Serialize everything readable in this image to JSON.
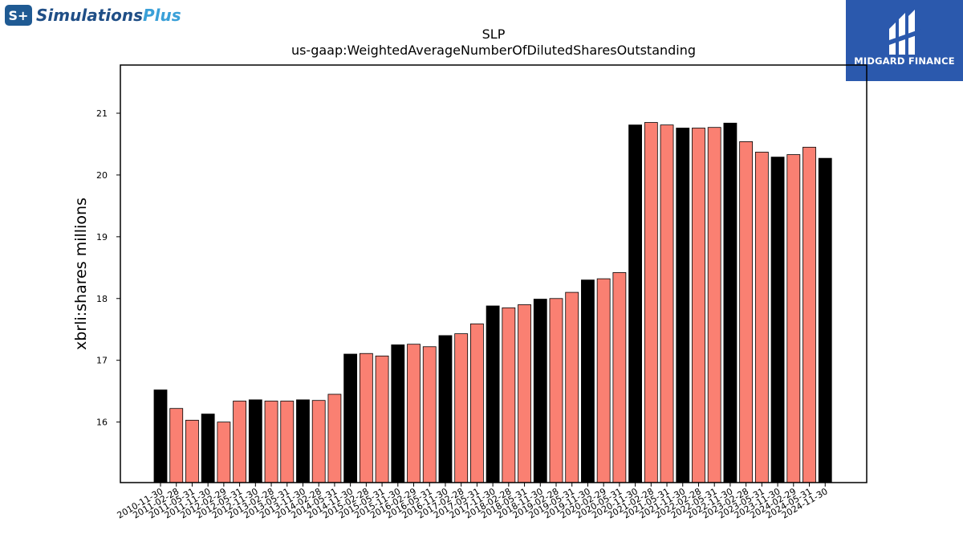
{
  "branding": {
    "left_logo_badge": "S+",
    "left_logo_text_a": "Simulations",
    "left_logo_text_b": "Plus",
    "right_logo_text": "MIDGARD FINANCE"
  },
  "chart_data": {
    "type": "bar",
    "title": "SLP",
    "subtitle": "us-gaap:WeightedAverageNumberOfDilutedSharesOutstanding",
    "ylabel": "xbrli:shares millions",
    "xlabel": "",
    "ylim": [
      15.02,
      21.78
    ],
    "yticks": [
      16,
      17,
      18,
      19,
      20,
      21
    ],
    "grid": false,
    "categories": [
      "2010-11-30",
      "2011-02-28",
      "2011-05-31",
      "2011-11-30",
      "2012-02-29",
      "2012-05-31",
      "2012-11-30",
      "2013-02-28",
      "2013-05-31",
      "2013-11-30",
      "2014-02-28",
      "2014-05-31",
      "2014-11-30",
      "2015-02-28",
      "2015-05-31",
      "2015-11-30",
      "2016-02-29",
      "2016-05-31",
      "2016-11-30",
      "2017-02-28",
      "2017-05-31",
      "2017-11-30",
      "2018-02-28",
      "2018-05-31",
      "2018-11-30",
      "2019-02-28",
      "2019-05-31",
      "2019-11-30",
      "2020-02-29",
      "2020-05-31",
      "2020-11-30",
      "2021-02-28",
      "2021-05-31",
      "2021-11-30",
      "2022-02-28",
      "2022-05-31",
      "2022-11-30",
      "2023-02-28",
      "2023-05-31",
      "2023-11-30",
      "2024-02-29",
      "2024-05-31",
      "2024-11-30"
    ],
    "values": [
      16.52,
      16.22,
      16.03,
      16.13,
      16.0,
      16.34,
      16.36,
      16.34,
      16.34,
      16.36,
      16.35,
      16.45,
      17.1,
      17.11,
      17.07,
      17.25,
      17.26,
      17.22,
      17.4,
      17.43,
      17.59,
      17.88,
      17.85,
      17.9,
      17.99,
      18.0,
      18.1,
      18.3,
      18.32,
      18.42,
      20.81,
      20.85,
      20.81,
      20.76,
      20.76,
      20.77,
      20.84,
      20.54,
      20.37,
      20.29,
      20.33,
      20.45,
      20.27
    ],
    "bar_colors": [
      "#000000",
      "#fa8072",
      "#fa8072",
      "#000000",
      "#fa8072",
      "#fa8072",
      "#000000",
      "#fa8072",
      "#fa8072",
      "#000000",
      "#fa8072",
      "#fa8072",
      "#000000",
      "#fa8072",
      "#fa8072",
      "#000000",
      "#fa8072",
      "#fa8072",
      "#000000",
      "#fa8072",
      "#fa8072",
      "#000000",
      "#fa8072",
      "#fa8072",
      "#000000",
      "#fa8072",
      "#fa8072",
      "#000000",
      "#fa8072",
      "#fa8072",
      "#000000",
      "#fa8072",
      "#fa8072",
      "#000000",
      "#fa8072",
      "#fa8072",
      "#000000",
      "#fa8072",
      "#fa8072",
      "#000000",
      "#fa8072",
      "#fa8072",
      "#000000"
    ]
  }
}
